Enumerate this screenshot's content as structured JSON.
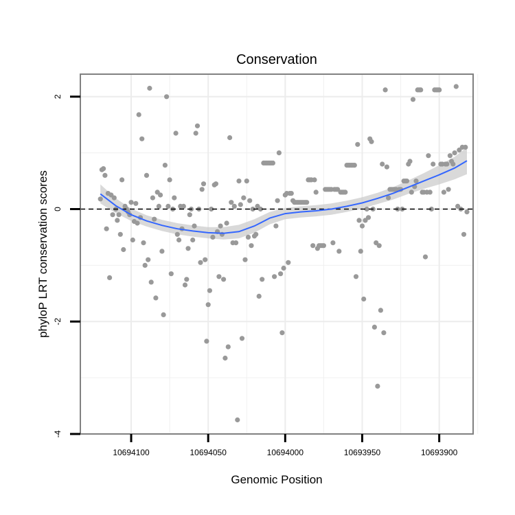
{
  "chart_data": {
    "type": "scatter",
    "title": "Conservation",
    "xlabel": "Genomic Position",
    "ylabel": "phyloP LRT conservation scores",
    "x_reversed": true,
    "xlim": [
      10694133,
      10693878
    ],
    "ylim": [
      -4,
      2.4
    ],
    "x_ticks": [
      10694100,
      10694050,
      10694000,
      10693950,
      10693900
    ],
    "x_tick_labels": [
      "10694100",
      "10694050",
      "10694000",
      "10693950",
      "10693900"
    ],
    "y_ticks": [
      -4,
      -2,
      0,
      2
    ],
    "y_tick_labels": [
      "-4",
      "-2",
      "0",
      "2"
    ],
    "grid": true,
    "reference_line": {
      "y": 0,
      "style": "dashed"
    },
    "colors": {
      "points": "#999999",
      "smooth": "#3366ff",
      "band": "#cccccc",
      "reference": "#000000",
      "grid": "#f0f0f0",
      "border": "#808080"
    },
    "points": [
      [
        10694120,
        0.18
      ],
      [
        10694119,
        0.7
      ],
      [
        10694118,
        0.72
      ],
      [
        10694117,
        0.6
      ],
      [
        10694116,
        -0.35
      ],
      [
        10694115,
        0.28
      ],
      [
        10694114,
        -1.22
      ],
      [
        10694113,
        0.25
      ],
      [
        10694112,
        -0.1
      ],
      [
        10694111,
        0.2
      ],
      [
        10694110,
        0.0
      ],
      [
        10694109,
        -0.2
      ],
      [
        10694108,
        -0.1
      ],
      [
        10694107,
        -0.45
      ],
      [
        10694106,
        0.52
      ],
      [
        10694105,
        -0.72
      ],
      [
        10694104,
        0.05
      ],
      [
        10694103,
        0.0
      ],
      [
        10694102,
        -0.05
      ],
      [
        10694101,
        -0.1
      ],
      [
        10694100,
        0.12
      ],
      [
        10694099,
        -0.55
      ],
      [
        10694098,
        -0.22
      ],
      [
        10694097,
        0.1
      ],
      [
        10694096,
        -0.25
      ],
      [
        10694095,
        1.68
      ],
      [
        10694094,
        -0.15
      ],
      [
        10694093,
        1.25
      ],
      [
        10694092,
        -0.6
      ],
      [
        10694091,
        -1.0
      ],
      [
        10694090,
        0.6
      ],
      [
        10694089,
        -0.9
      ],
      [
        10694088,
        2.15
      ],
      [
        10694087,
        -1.3
      ],
      [
        10694086,
        0.2
      ],
      [
        10694085,
        -0.18
      ],
      [
        10694084,
        -1.58
      ],
      [
        10694083,
        0.3
      ],
      [
        10694082,
        0.05
      ],
      [
        10694081,
        0.25
      ],
      [
        10694080,
        -0.75
      ],
      [
        10694079,
        -1.88
      ],
      [
        10694078,
        0.78
      ],
      [
        10694077,
        2.0
      ],
      [
        10694076,
        0.05
      ],
      [
        10694075,
        0.52
      ],
      [
        10694074,
        -1.15
      ],
      [
        10694073,
        0.0
      ],
      [
        10694072,
        0.2
      ],
      [
        10694071,
        1.35
      ],
      [
        10694070,
        -0.45
      ],
      [
        10694069,
        -0.55
      ],
      [
        10694068,
        0.05
      ],
      [
        10694067,
        -0.35
      ],
      [
        10694066,
        0.05
      ],
      [
        10694065,
        -1.35
      ],
      [
        10694064,
        -1.25
      ],
      [
        10694063,
        -0.7
      ],
      [
        10694062,
        -0.1
      ],
      [
        10694061,
        0.0
      ],
      [
        10694060,
        -0.55
      ],
      [
        10694059,
        -0.3
      ],
      [
        10694058,
        1.35
      ],
      [
        10694057,
        1.48
      ],
      [
        10694056,
        0.0
      ],
      [
        10694055,
        -0.95
      ],
      [
        10694054,
        0.35
      ],
      [
        10694053,
        0.45
      ],
      [
        10694052,
        -0.9
      ],
      [
        10694051,
        -2.35
      ],
      [
        10694050,
        -1.7
      ],
      [
        10694049,
        -1.45
      ],
      [
        10694048,
        0.0
      ],
      [
        10694047,
        -0.5
      ],
      [
        10694046,
        0.43
      ],
      [
        10694045,
        0.45
      ],
      [
        10694044,
        -0.4
      ],
      [
        10694043,
        -1.2
      ],
      [
        10694042,
        -0.3
      ],
      [
        10694041,
        -0.45
      ],
      [
        10694040,
        -1.25
      ],
      [
        10694039,
        -2.65
      ],
      [
        10694038,
        -0.25
      ],
      [
        10694037,
        -2.45
      ],
      [
        10694036,
        1.27
      ],
      [
        10694035,
        0.12
      ],
      [
        10694034,
        -0.6
      ],
      [
        10694033,
        0.05
      ],
      [
        10694032,
        -0.6
      ],
      [
        10694031,
        -3.75
      ],
      [
        10694030,
        0.5
      ],
      [
        10694029,
        0.08
      ],
      [
        10694028,
        -2.3
      ],
      [
        10694027,
        0.2
      ],
      [
        10694026,
        -0.9
      ],
      [
        10694025,
        0.5
      ],
      [
        10694024,
        -0.5
      ],
      [
        10694023,
        0.15
      ],
      [
        10694022,
        -0.65
      ],
      [
        10694021,
        0.0
      ],
      [
        10694020,
        -0.48
      ],
      [
        10694019,
        -0.45
      ],
      [
        10694018,
        0.05
      ],
      [
        10694017,
        -1.55
      ],
      [
        10694016,
        0.0
      ],
      [
        10694015,
        -1.25
      ],
      [
        10694014,
        0.82
      ],
      [
        10694013,
        0.82
      ],
      [
        10694012,
        0.82
      ],
      [
        10694011,
        0.82
      ],
      [
        10694010,
        0.82
      ],
      [
        10694009,
        0.82
      ],
      [
        10694008,
        0.82
      ],
      [
        10694007,
        -1.2
      ],
      [
        10694006,
        -0.3
      ],
      [
        10694005,
        0.15
      ],
      [
        10694004,
        1.0
      ],
      [
        10694003,
        -1.15
      ],
      [
        10694002,
        -2.2
      ],
      [
        10694001,
        -1.05
      ],
      [
        10694000,
        0.25
      ],
      [
        10693999,
        0.28
      ],
      [
        10693998,
        -0.95
      ],
      [
        10693997,
        0.28
      ],
      [
        10693996,
        0.28
      ],
      [
        10693995,
        0.15
      ],
      [
        10693994,
        0.12
      ],
      [
        10693993,
        0.12
      ],
      [
        10693992,
        0.12
      ],
      [
        10693991,
        0.12
      ],
      [
        10693990,
        0.12
      ],
      [
        10693989,
        0.12
      ],
      [
        10693988,
        0.12
      ],
      [
        10693987,
        0.12
      ],
      [
        10693986,
        0.12
      ],
      [
        10693985,
        0.52
      ],
      [
        10693984,
        0.52
      ],
      [
        10693983,
        0.52
      ],
      [
        10693982,
        -0.65
      ],
      [
        10693981,
        0.52
      ],
      [
        10693980,
        0.3
      ],
      [
        10693979,
        -0.7
      ],
      [
        10693978,
        -0.65
      ],
      [
        10693977,
        -0.65
      ],
      [
        10693976,
        -0.65
      ],
      [
        10693975,
        -0.65
      ],
      [
        10693974,
        0.35
      ],
      [
        10693973,
        0.35
      ],
      [
        10693972,
        0.35
      ],
      [
        10693971,
        0.35
      ],
      [
        10693970,
        0.35
      ],
      [
        10693969,
        -0.6
      ],
      [
        10693968,
        0.35
      ],
      [
        10693967,
        0.35
      ],
      [
        10693966,
        0.35
      ],
      [
        10693965,
        -0.75
      ],
      [
        10693964,
        0.3
      ],
      [
        10693963,
        0.3
      ],
      [
        10693962,
        0.3
      ],
      [
        10693961,
        0.3
      ],
      [
        10693960,
        0.78
      ],
      [
        10693959,
        0.78
      ],
      [
        10693958,
        0.78
      ],
      [
        10693957,
        0.78
      ],
      [
        10693956,
        0.78
      ],
      [
        10693955,
        0.78
      ],
      [
        10693954,
        -1.2
      ],
      [
        10693953,
        1.15
      ],
      [
        10693952,
        -0.2
      ],
      [
        10693951,
        -0.75
      ],
      [
        10693950,
        -0.3
      ],
      [
        10693949,
        -1.6
      ],
      [
        10693948,
        -0.2
      ],
      [
        10693947,
        0.0
      ],
      [
        10693946,
        -0.15
      ],
      [
        10693945,
        1.25
      ],
      [
        10693944,
        1.2
      ],
      [
        10693943,
        0.0
      ],
      [
        10693942,
        -2.1
      ],
      [
        10693941,
        -0.6
      ],
      [
        10693940,
        -3.15
      ],
      [
        10693939,
        -0.65
      ],
      [
        10693938,
        -1.8
      ],
      [
        10693937,
        0.8
      ],
      [
        10693936,
        -2.2
      ],
      [
        10693935,
        2.12
      ],
      [
        10693934,
        0.75
      ],
      [
        10693933,
        0.2
      ],
      [
        10693932,
        0.35
      ],
      [
        10693931,
        0.35
      ],
      [
        10693930,
        0.35
      ],
      [
        10693929,
        0.35
      ],
      [
        10693928,
        0.35
      ],
      [
        10693927,
        0.0
      ],
      [
        10693926,
        0.35
      ],
      [
        10693925,
        0.35
      ],
      [
        10693924,
        0.0
      ],
      [
        10693923,
        0.5
      ],
      [
        10693922,
        0.5
      ],
      [
        10693921,
        0.5
      ],
      [
        10693920,
        0.8
      ],
      [
        10693919,
        0.85
      ],
      [
        10693918,
        0.3
      ],
      [
        10693917,
        1.95
      ],
      [
        10693916,
        0.4
      ],
      [
        10693915,
        0.5
      ],
      [
        10693914,
        2.12
      ],
      [
        10693913,
        2.12
      ],
      [
        10693912,
        2.12
      ],
      [
        10693911,
        0.3
      ],
      [
        10693910,
        0.3
      ],
      [
        10693909,
        -0.85
      ],
      [
        10693908,
        0.3
      ],
      [
        10693907,
        0.95
      ],
      [
        10693906,
        0.3
      ],
      [
        10693905,
        0.0
      ],
      [
        10693904,
        0.8
      ],
      [
        10693903,
        2.12
      ],
      [
        10693902,
        2.12
      ],
      [
        10693901,
        2.12
      ],
      [
        10693900,
        2.12
      ],
      [
        10693899,
        0.8
      ],
      [
        10693898,
        0.8
      ],
      [
        10693897,
        0.3
      ],
      [
        10693896,
        0.8
      ],
      [
        10693895,
        0.8
      ],
      [
        10693894,
        0.35
      ],
      [
        10693893,
        0.95
      ],
      [
        10693892,
        0.85
      ],
      [
        10693891,
        0.8
      ],
      [
        10693890,
        1.0
      ],
      [
        10693889,
        2.18
      ],
      [
        10693888,
        0.05
      ],
      [
        10693887,
        1.05
      ],
      [
        10693886,
        0.0
      ],
      [
        10693885,
        1.1
      ],
      [
        10693884,
        -0.45
      ],
      [
        10693883,
        1.1
      ],
      [
        10693882,
        -0.05
      ]
    ],
    "smooth": [
      [
        10694120,
        0.27
      ],
      [
        10694110,
        0.06
      ],
      [
        10694100,
        -0.1
      ],
      [
        10694090,
        -0.21
      ],
      [
        10694080,
        -0.29
      ],
      [
        10694070,
        -0.35
      ],
      [
        10694060,
        -0.39
      ],
      [
        10694050,
        -0.42
      ],
      [
        10694040,
        -0.43
      ],
      [
        10694030,
        -0.4
      ],
      [
        10694020,
        -0.3
      ],
      [
        10694010,
        -0.16
      ],
      [
        10694000,
        -0.08
      ],
      [
        10693990,
        -0.05
      ],
      [
        10693980,
        -0.03
      ],
      [
        10693970,
        0.0
      ],
      [
        10693960,
        0.05
      ],
      [
        10693950,
        0.11
      ],
      [
        10693940,
        0.19
      ],
      [
        10693930,
        0.28
      ],
      [
        10693920,
        0.39
      ],
      [
        10693910,
        0.5
      ],
      [
        10693900,
        0.61
      ],
      [
        10693890,
        0.73
      ],
      [
        10693882,
        0.86
      ]
    ],
    "band_halfwidth": [
      0.17,
      0.13,
      0.11,
      0.1,
      0.1,
      0.1,
      0.1,
      0.1,
      0.11,
      0.12,
      0.12,
      0.11,
      0.1,
      0.1,
      0.1,
      0.1,
      0.1,
      0.1,
      0.1,
      0.11,
      0.12,
      0.14,
      0.17,
      0.2,
      0.24
    ]
  }
}
